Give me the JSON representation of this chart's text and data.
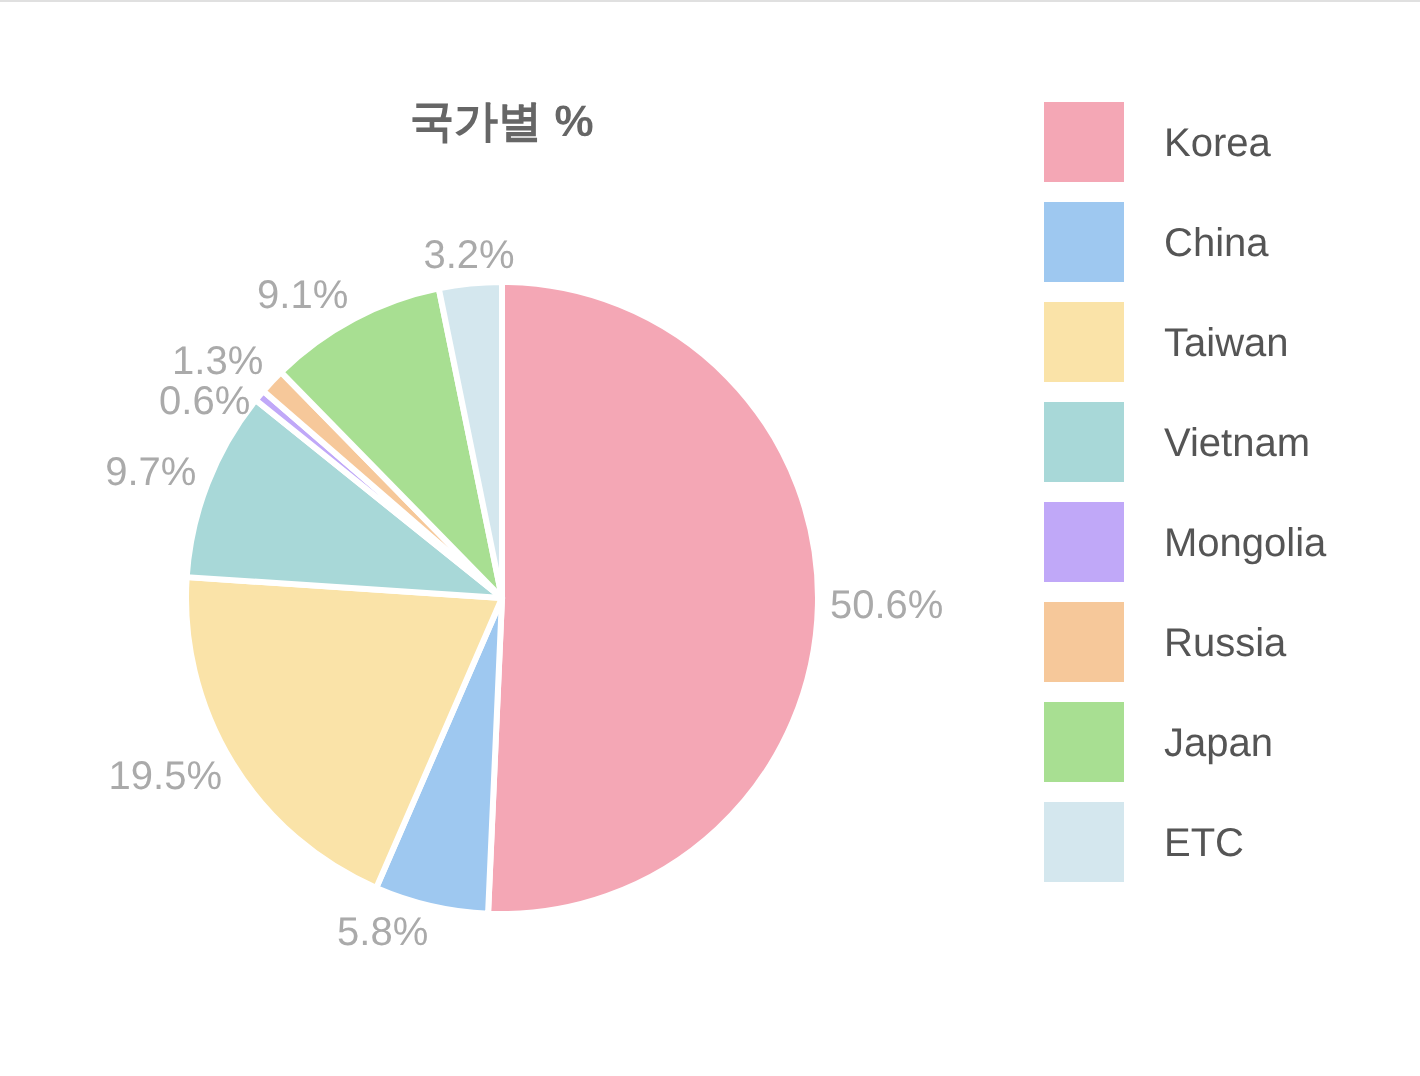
{
  "chart_data": {
    "type": "pie",
    "title": "국가별 %",
    "categories": [
      "Korea",
      "China",
      "Taiwan",
      "Vietnam",
      "Mongolia",
      "Russia",
      "Japan",
      "ETC"
    ],
    "values": [
      50.6,
      5.8,
      19.5,
      9.7,
      0.6,
      1.3,
      9.1,
      3.2
    ],
    "value_labels": [
      "50.6%",
      "5.8%",
      "19.5%",
      "9.7%",
      "0.6%",
      "1.3%",
      "9.1%",
      "3.2%"
    ],
    "colors": [
      "#f4a7b5",
      "#9ec8f0",
      "#fae3a8",
      "#a8d8d8",
      "#c0a8f8",
      "#f6c89a",
      "#a8df92",
      "#d4e7ee"
    ],
    "legend": "right"
  }
}
